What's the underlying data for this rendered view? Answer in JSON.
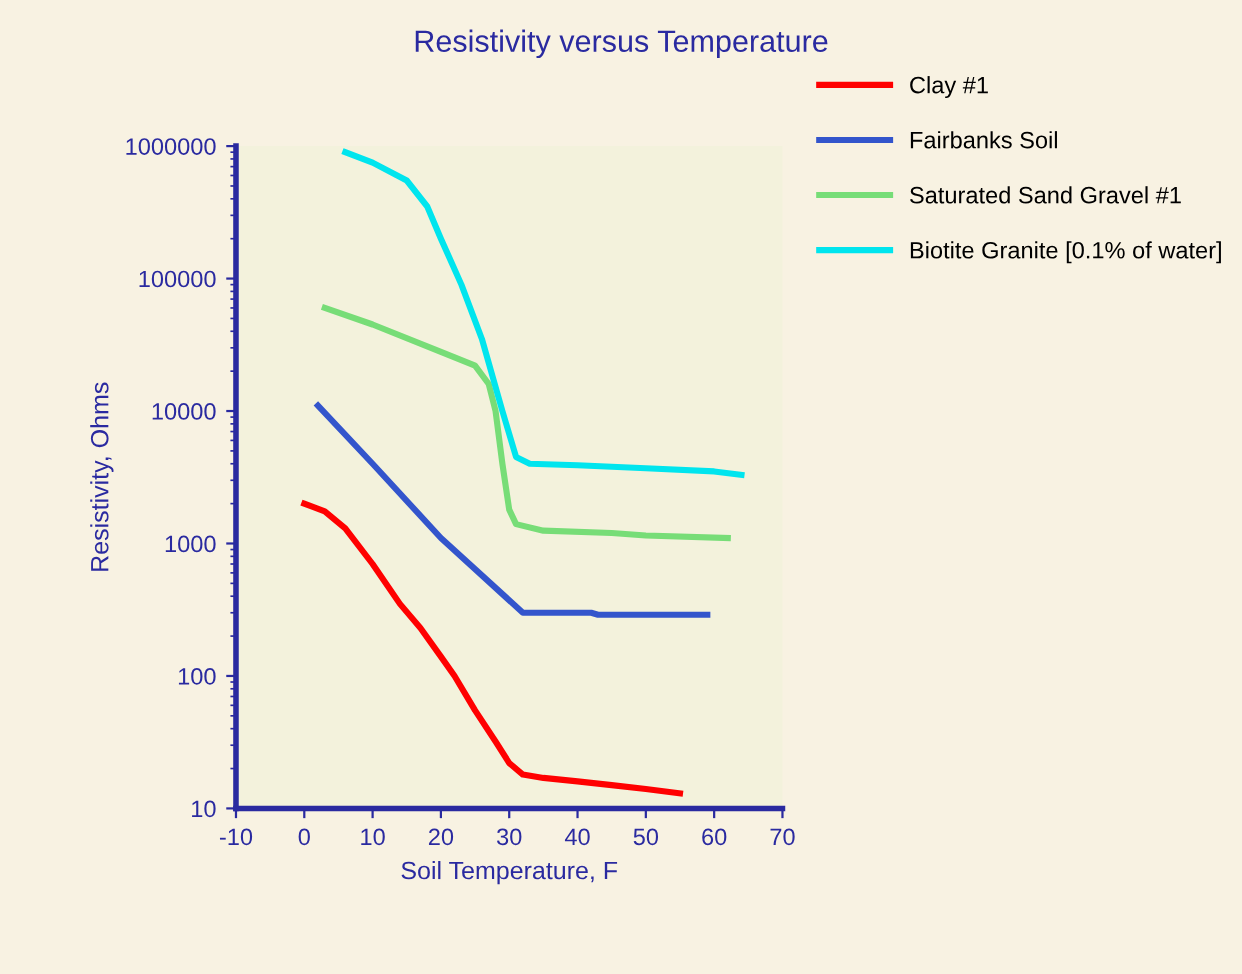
{
  "chart_data": {
    "type": "line",
    "title": "Resistivity versus Temperature",
    "xlabel": "Soil Temperature, F",
    "ylabel": "Resistivity, Ohms",
    "log": "y",
    "grid": false,
    "legend": "right",
    "marker": "none",
    "line_style": "solid",
    "xlim": [
      -10,
      70
    ],
    "xticks": [
      -10,
      0,
      10,
      20,
      30,
      40,
      50,
      60,
      70
    ],
    "ylim": [
      10,
      1000000
    ],
    "yticks": [
      10,
      100,
      1000,
      10000,
      100000,
      1000000
    ],
    "series": [
      {
        "name": "Clay #1",
        "color": "#ff0000",
        "x": [
          0,
          3,
          6,
          10,
          14,
          17,
          20,
          22,
          25,
          28,
          30,
          32,
          35,
          40,
          45,
          50,
          55
        ],
        "values": [
          2000,
          1750,
          1300,
          700,
          350,
          230,
          140,
          100,
          55,
          32,
          22,
          18,
          17,
          16,
          15,
          14,
          13
        ]
      },
      {
        "name": "Fairbanks Soil",
        "color": "#3355cc",
        "x": [
          2,
          10,
          20,
          32,
          42,
          43,
          59
        ],
        "values": [
          11000,
          4000,
          1100,
          300,
          300,
          290,
          290
        ]
      },
      {
        "name": "Saturated Sand Gravel #1",
        "color": "#77dd77",
        "x": [
          3,
          10,
          20,
          25,
          27,
          28,
          29,
          30,
          31,
          35,
          45,
          50,
          62
        ],
        "values": [
          60000,
          45000,
          28000,
          22000,
          16000,
          10000,
          4000,
          1800,
          1400,
          1250,
          1200,
          1150,
          1100
        ]
      },
      {
        "name": "Biotite Granite [0.1% of water]",
        "color": "#00e5ee",
        "x": [
          6,
          10,
          15,
          18,
          20,
          23,
          26,
          29,
          31,
          33,
          40,
          50,
          60,
          64
        ],
        "values": [
          900000,
          750000,
          550000,
          350000,
          200000,
          90000,
          35000,
          10000,
          4500,
          4000,
          3900,
          3700,
          3500,
          3300
        ]
      }
    ]
  }
}
